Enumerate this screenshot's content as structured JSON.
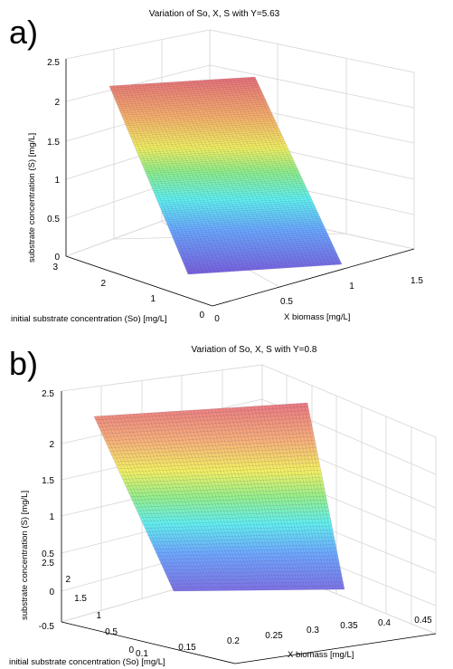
{
  "panels": [
    {
      "letter": "a)",
      "title": "Variation of So, X, S with Y=5.63",
      "zlabel": "substrate concentration (S) [mg/L]",
      "ylabel": "initial substrate concentration (So) [mg/L]",
      "xlabel": "X biomass [mg/L]"
    },
    {
      "letter": "b)",
      "title": "Variation of So, X, S with Y=0.8",
      "zlabel": "substrate concentration (S) [mg/L]",
      "ylabel": "initial substrate concentration (So) [mg/L]",
      "xlabel": "X biomass [mg/L]"
    }
  ],
  "chart_data": [
    {
      "type": "surface",
      "title": "Variation of So, X, S with Y=5.63",
      "xlabel": "X biomass [mg/L]",
      "ylabel": "initial substrate concentration (So) [mg/L]",
      "zlabel": "substrate concentration (S) [mg/L]",
      "xlim": [
        0,
        1.5
      ],
      "ylim": [
        0,
        3
      ],
      "zlim": [
        0,
        2.5
      ],
      "xticks": [
        "0",
        "0.5",
        "1",
        "1.5"
      ],
      "yticks": [
        "0",
        "1",
        "2",
        "3"
      ],
      "zticks": [
        "0",
        "0.5",
        "1",
        "1.5",
        "2",
        "2.5"
      ],
      "colormap": "jet",
      "grid": true,
      "corners": [
        {
          "x": 0.2,
          "y": 2.0,
          "z": 2.2
        },
        {
          "x": 0.95,
          "y": 2.0,
          "z": 2.2
        },
        {
          "x": 0.95,
          "y": 0.0,
          "z": 0.0
        },
        {
          "x": 0.2,
          "y": 0.0,
          "z": 0.0
        }
      ]
    },
    {
      "type": "surface",
      "title": "Variation of So, X, S with Y=0.8",
      "xlabel": "X biomass [mg/L]",
      "ylabel": "initial substrate concentration (So) [mg/L]",
      "zlabel": "substrate concentration (S) [mg/L]",
      "xlim": [
        0.1,
        0.45
      ],
      "ylim": [
        0,
        2.5
      ],
      "zlim": [
        -0.5,
        2.5
      ],
      "xticks": [
        "0.1",
        "0.15",
        "0.2",
        "0.25",
        "0.3",
        "0.35",
        "0.4",
        "0.45"
      ],
      "yticks": [
        "0",
        "0.5",
        "1",
        "1.5",
        "2",
        "2.5"
      ],
      "zticks": [
        "-0.5",
        "0",
        "0.5",
        "1",
        "1.5",
        "2",
        "2.5"
      ],
      "colormap": "jet",
      "grid": true,
      "corners": [
        {
          "x": 0.1,
          "y": 2.2,
          "z": 2.15
        },
        {
          "x": 0.4,
          "y": 2.2,
          "z": 2.15
        },
        {
          "x": 0.4,
          "y": 0.0,
          "z": -0.1
        },
        {
          "x": 0.1,
          "y": 0.0,
          "z": -0.1
        }
      ]
    }
  ]
}
